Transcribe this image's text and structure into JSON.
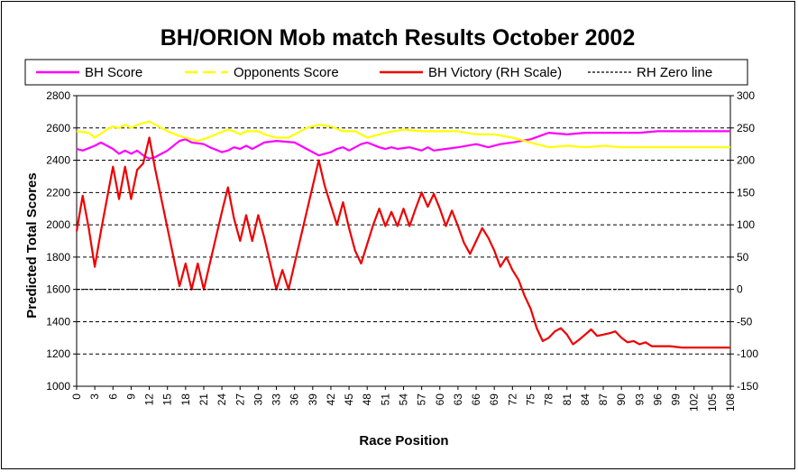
{
  "chart_data": {
    "type": "line",
    "title": "BH/ORION Mob match Results October 2002",
    "xlabel": "Race Position",
    "ylabel": "Predicted Total Scores",
    "ylim": [
      1000,
      2800
    ],
    "y_ticks": [
      1000,
      1200,
      1400,
      1600,
      1800,
      2000,
      2200,
      2400,
      2600,
      2800
    ],
    "y2lim": [
      -150,
      300
    ],
    "y2_ticks": [
      -150,
      -100,
      -50,
      0,
      50,
      100,
      150,
      200,
      250,
      300
    ],
    "x_tick_labels": [
      "0",
      "3",
      "6",
      "9",
      "12",
      "15",
      "18",
      "21",
      "24",
      "27",
      "30",
      "33",
      "36",
      "39",
      "42",
      "45",
      "48",
      "51",
      "54",
      "57",
      "60",
      "63",
      "66",
      "69",
      "72",
      "75",
      "78",
      "81",
      "84",
      "87",
      "90",
      "93",
      "96",
      "99",
      "102",
      "105",
      "108"
    ],
    "grid": "horizontal dashed",
    "legend_position": "top",
    "legend": [
      "BH Score",
      "Opponents Score",
      "BH Victory (RH Scale)",
      "RH Zero line"
    ],
    "series": [
      {
        "name": "BH Score",
        "axis": "left",
        "color": "#ff00ff",
        "points": [
          [
            0,
            2470
          ],
          [
            1,
            2460
          ],
          [
            3,
            2490
          ],
          [
            4,
            2510
          ],
          [
            6,
            2470
          ],
          [
            7,
            2440
          ],
          [
            8,
            2460
          ],
          [
            9,
            2440
          ],
          [
            10,
            2460
          ],
          [
            11,
            2430
          ],
          [
            12,
            2410
          ],
          [
            13,
            2420
          ],
          [
            14,
            2440
          ],
          [
            15,
            2460
          ],
          [
            17,
            2520
          ],
          [
            18,
            2530
          ],
          [
            19,
            2510
          ],
          [
            21,
            2500
          ],
          [
            22,
            2480
          ],
          [
            24,
            2450
          ],
          [
            25,
            2460
          ],
          [
            26,
            2480
          ],
          [
            27,
            2470
          ],
          [
            28,
            2490
          ],
          [
            29,
            2470
          ],
          [
            30,
            2490
          ],
          [
            31,
            2510
          ],
          [
            33,
            2520
          ],
          [
            36,
            2510
          ],
          [
            39,
            2450
          ],
          [
            40,
            2430
          ],
          [
            42,
            2450
          ],
          [
            43,
            2470
          ],
          [
            44,
            2480
          ],
          [
            45,
            2460
          ],
          [
            47,
            2500
          ],
          [
            48,
            2510
          ],
          [
            50,
            2480
          ],
          [
            51,
            2470
          ],
          [
            52,
            2480
          ],
          [
            53,
            2470
          ],
          [
            55,
            2480
          ],
          [
            57,
            2460
          ],
          [
            58,
            2480
          ],
          [
            59,
            2460
          ],
          [
            61,
            2470
          ],
          [
            63,
            2480
          ],
          [
            66,
            2500
          ],
          [
            68,
            2480
          ],
          [
            70,
            2500
          ],
          [
            72,
            2510
          ],
          [
            75,
            2530
          ],
          [
            78,
            2570
          ],
          [
            81,
            2560
          ],
          [
            84,
            2570
          ],
          [
            87,
            2570
          ],
          [
            90,
            2570
          ],
          [
            93,
            2570
          ],
          [
            96,
            2580
          ],
          [
            102,
            2580
          ],
          [
            108,
            2580
          ]
        ]
      },
      {
        "name": "Opponents Score",
        "axis": "left",
        "color": "#ffff00",
        "points": [
          [
            0,
            2580
          ],
          [
            2,
            2570
          ],
          [
            3,
            2540
          ],
          [
            5,
            2590
          ],
          [
            6,
            2610
          ],
          [
            7,
            2600
          ],
          [
            8,
            2620
          ],
          [
            9,
            2600
          ],
          [
            10,
            2620
          ],
          [
            11,
            2630
          ],
          [
            12,
            2640
          ],
          [
            13,
            2620
          ],
          [
            14,
            2600
          ],
          [
            15,
            2580
          ],
          [
            17,
            2550
          ],
          [
            18,
            2540
          ],
          [
            20,
            2520
          ],
          [
            21,
            2530
          ],
          [
            23,
            2560
          ],
          [
            25,
            2590
          ],
          [
            26,
            2580
          ],
          [
            27,
            2560
          ],
          [
            28,
            2580
          ],
          [
            30,
            2580
          ],
          [
            31,
            2560
          ],
          [
            33,
            2540
          ],
          [
            35,
            2540
          ],
          [
            38,
            2600
          ],
          [
            40,
            2620
          ],
          [
            42,
            2610
          ],
          [
            44,
            2580
          ],
          [
            46,
            2580
          ],
          [
            48,
            2540
          ],
          [
            51,
            2570
          ],
          [
            54,
            2590
          ],
          [
            57,
            2580
          ],
          [
            60,
            2580
          ],
          [
            63,
            2580
          ],
          [
            66,
            2560
          ],
          [
            69,
            2560
          ],
          [
            72,
            2540
          ],
          [
            75,
            2510
          ],
          [
            78,
            2480
          ],
          [
            81,
            2490
          ],
          [
            84,
            2480
          ],
          [
            87,
            2490
          ],
          [
            90,
            2480
          ],
          [
            96,
            2480
          ],
          [
            102,
            2480
          ],
          [
            108,
            2480
          ]
        ]
      },
      {
        "name": "BH Victory (RH Scale)",
        "axis": "right",
        "color": "#ee0000",
        "points": [
          [
            0,
            90
          ],
          [
            1,
            145
          ],
          [
            2,
            95
          ],
          [
            3,
            35
          ],
          [
            4,
            90
          ],
          [
            5,
            140
          ],
          [
            6,
            190
          ],
          [
            7,
            140
          ],
          [
            8,
            190
          ],
          [
            9,
            140
          ],
          [
            10,
            185
          ],
          [
            11,
            195
          ],
          [
            12,
            235
          ],
          [
            13,
            185
          ],
          [
            14,
            140
          ],
          [
            15,
            95
          ],
          [
            16,
            50
          ],
          [
            17,
            5
          ],
          [
            18,
            40
          ],
          [
            19,
            0
          ],
          [
            20,
            40
          ],
          [
            21,
            0
          ],
          [
            22,
            40
          ],
          [
            23,
            80
          ],
          [
            24,
            120
          ],
          [
            25,
            158
          ],
          [
            26,
            110
          ],
          [
            27,
            75
          ],
          [
            28,
            115
          ],
          [
            29,
            75
          ],
          [
            30,
            115
          ],
          [
            31,
            80
          ],
          [
            32,
            40
          ],
          [
            33,
            0
          ],
          [
            34,
            30
          ],
          [
            35,
            0
          ],
          [
            36,
            40
          ],
          [
            37,
            80
          ],
          [
            38,
            120
          ],
          [
            39,
            160
          ],
          [
            40,
            200
          ],
          [
            41,
            160
          ],
          [
            42,
            130
          ],
          [
            43,
            100
          ],
          [
            44,
            135
          ],
          [
            45,
            95
          ],
          [
            46,
            60
          ],
          [
            47,
            40
          ],
          [
            48,
            70
          ],
          [
            49,
            100
          ],
          [
            50,
            125
          ],
          [
            51,
            98
          ],
          [
            52,
            120
          ],
          [
            53,
            98
          ],
          [
            54,
            125
          ],
          [
            55,
            98
          ],
          [
            56,
            125
          ],
          [
            57,
            150
          ],
          [
            58,
            128
          ],
          [
            59,
            148
          ],
          [
            60,
            125
          ],
          [
            61,
            98
          ],
          [
            62,
            122
          ],
          [
            63,
            98
          ],
          [
            64,
            72
          ],
          [
            65,
            55
          ],
          [
            66,
            75
          ],
          [
            67,
            95
          ],
          [
            68,
            80
          ],
          [
            69,
            60
          ],
          [
            70,
            35
          ],
          [
            71,
            50
          ],
          [
            72,
            30
          ],
          [
            73,
            15
          ],
          [
            74,
            -10
          ],
          [
            75,
            -30
          ],
          [
            76,
            -60
          ],
          [
            77,
            -80
          ],
          [
            78,
            -75
          ],
          [
            79,
            -65
          ],
          [
            80,
            -60
          ],
          [
            81,
            -70
          ],
          [
            82,
            -85
          ],
          [
            83,
            -78
          ],
          [
            84,
            -70
          ],
          [
            85,
            -62
          ],
          [
            86,
            -72
          ],
          [
            87,
            -70
          ],
          [
            88,
            -68
          ],
          [
            89,
            -65
          ],
          [
            90,
            -75
          ],
          [
            91,
            -82
          ],
          [
            92,
            -80
          ],
          [
            93,
            -85
          ],
          [
            94,
            -82
          ],
          [
            95,
            -88
          ],
          [
            96,
            -88
          ],
          [
            98,
            -88
          ],
          [
            100,
            -90
          ],
          [
            108,
            -90
          ]
        ]
      },
      {
        "name": "RH Zero line",
        "axis": "right",
        "color": "#000000",
        "points": [
          [
            0,
            0
          ],
          [
            108,
            0
          ]
        ]
      }
    ]
  }
}
